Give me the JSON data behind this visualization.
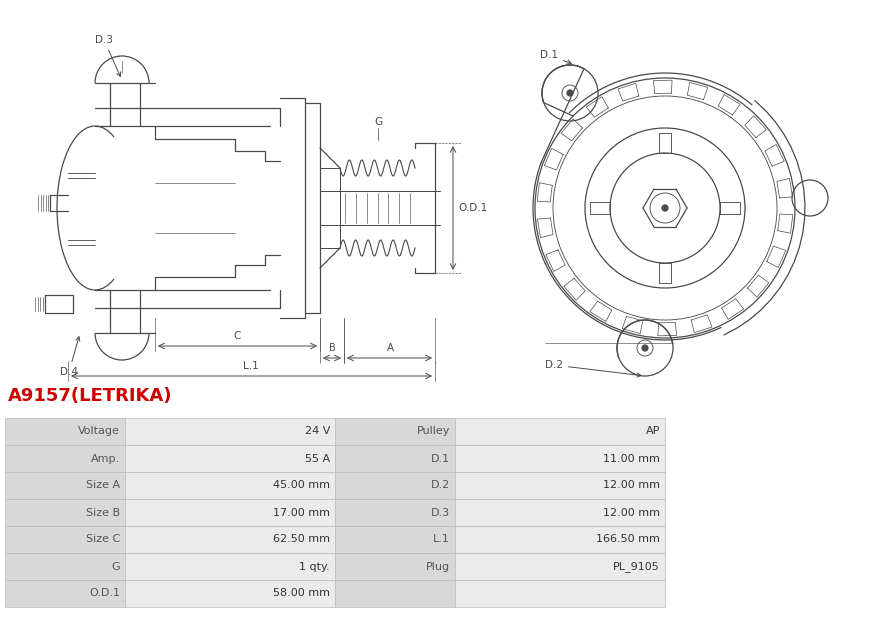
{
  "title": "A9157(LETRIKA)",
  "title_color": "#cc0000",
  "bg_color": "#ffffff",
  "table_headers_left": [
    "Voltage",
    "Amp.",
    "Size A",
    "Size B",
    "Size C",
    "G",
    "O.D.1"
  ],
  "table_values_left": [
    "24 V",
    "55 A",
    "45.00 mm",
    "17.00 mm",
    "62.50 mm",
    "1 qty.",
    "58.00 mm"
  ],
  "table_headers_right": [
    "Pulley",
    "D.1",
    "D.2",
    "D.3",
    "L.1",
    "Plug",
    ""
  ],
  "table_values_right": [
    "AP",
    "11.00 mm",
    "12.00 mm",
    "12.00 mm",
    "166.50 mm",
    "PL_9105",
    ""
  ],
  "row_colors": [
    "#e8e8e8",
    "#f2f2f2"
  ],
  "header_col_color": "#d8d8d8",
  "value_col_color": "#ebebeb",
  "table_font_size": 8.0,
  "line_color": "#4a4a4a",
  "dim_color": "#4a4a4a",
  "lw": 0.9
}
